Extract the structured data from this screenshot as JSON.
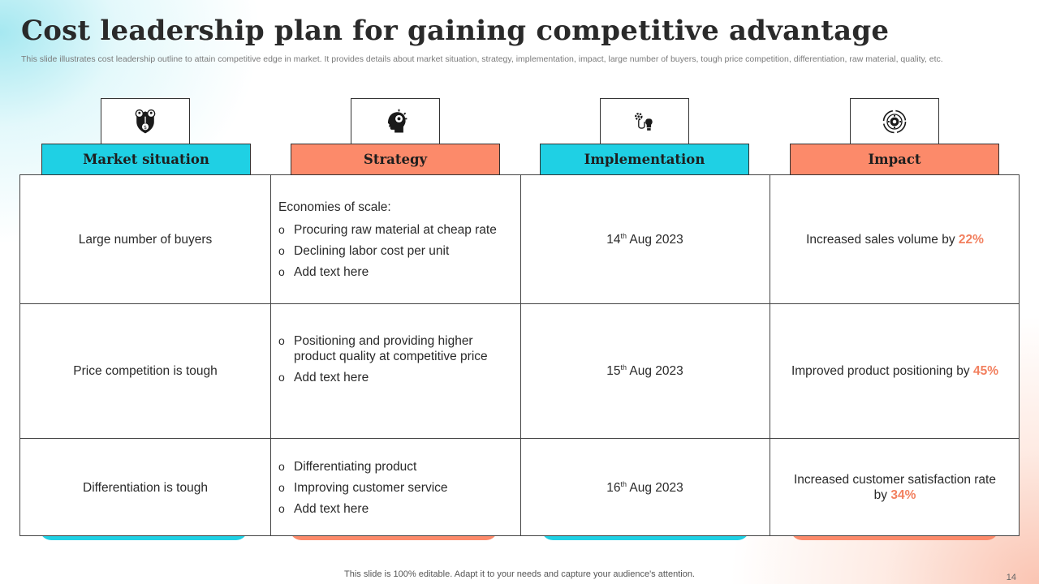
{
  "slide": {
    "title": "Cost leadership plan for gaining competitive advantage",
    "subtitle": "This slide illustrates cost leadership outline to attain competitive edge in market. It provides details about market situation, strategy, implementation, impact, large number of buyers, tough price competition, differentiation, raw material, quality, etc.",
    "footer": "This slide is 100% editable. Adapt it to your needs and capture your audience's attention.",
    "page_number": "14"
  },
  "colors": {
    "blue": "#1fd0e4",
    "orange": "#fc8a6a",
    "accent_text": "#f2805f"
  },
  "columns": [
    {
      "label": "Market situation",
      "icon": "shield-people-icon",
      "color": "blue"
    },
    {
      "label": "Strategy",
      "icon": "head-gear-icon",
      "color": "orange"
    },
    {
      "label": "Implementation",
      "icon": "gear-lightbulb-icon",
      "color": "blue"
    },
    {
      "label": "Impact",
      "icon": "target-gear-icon",
      "color": "orange"
    }
  ],
  "rows": [
    {
      "situation": "Large number  of buyers",
      "strategy_lead": "Economies of scale:",
      "strategy_bullets": [
        "Procuring raw material at cheap rate",
        "Declining labor cost per unit",
        "Add text here"
      ],
      "date_day": "14",
      "date_suffix": "th",
      "date_rest": " Aug 2023",
      "impact_text": "Increased sales volume  by ",
      "impact_value": "22%"
    },
    {
      "situation": "Price competition is tough",
      "strategy_bullets": [
        "Positioning and providing higher product quality at competitive price",
        "Add text here"
      ],
      "date_day": "15",
      "date_suffix": "th",
      "date_rest": " Aug 2023",
      "impact_text": "Improved product positioning by ",
      "impact_value": "45%"
    },
    {
      "situation": "Differentiation is tough",
      "strategy_bullets": [
        "Differentiating product",
        "Improving customer  service",
        "Add text here"
      ],
      "date_day": "16",
      "date_suffix": "th",
      "date_rest": " Aug 2023",
      "impact_text": "Increased customer  satisfaction rate by ",
      "impact_value": "34%"
    }
  ],
  "bullet_mark": "o"
}
